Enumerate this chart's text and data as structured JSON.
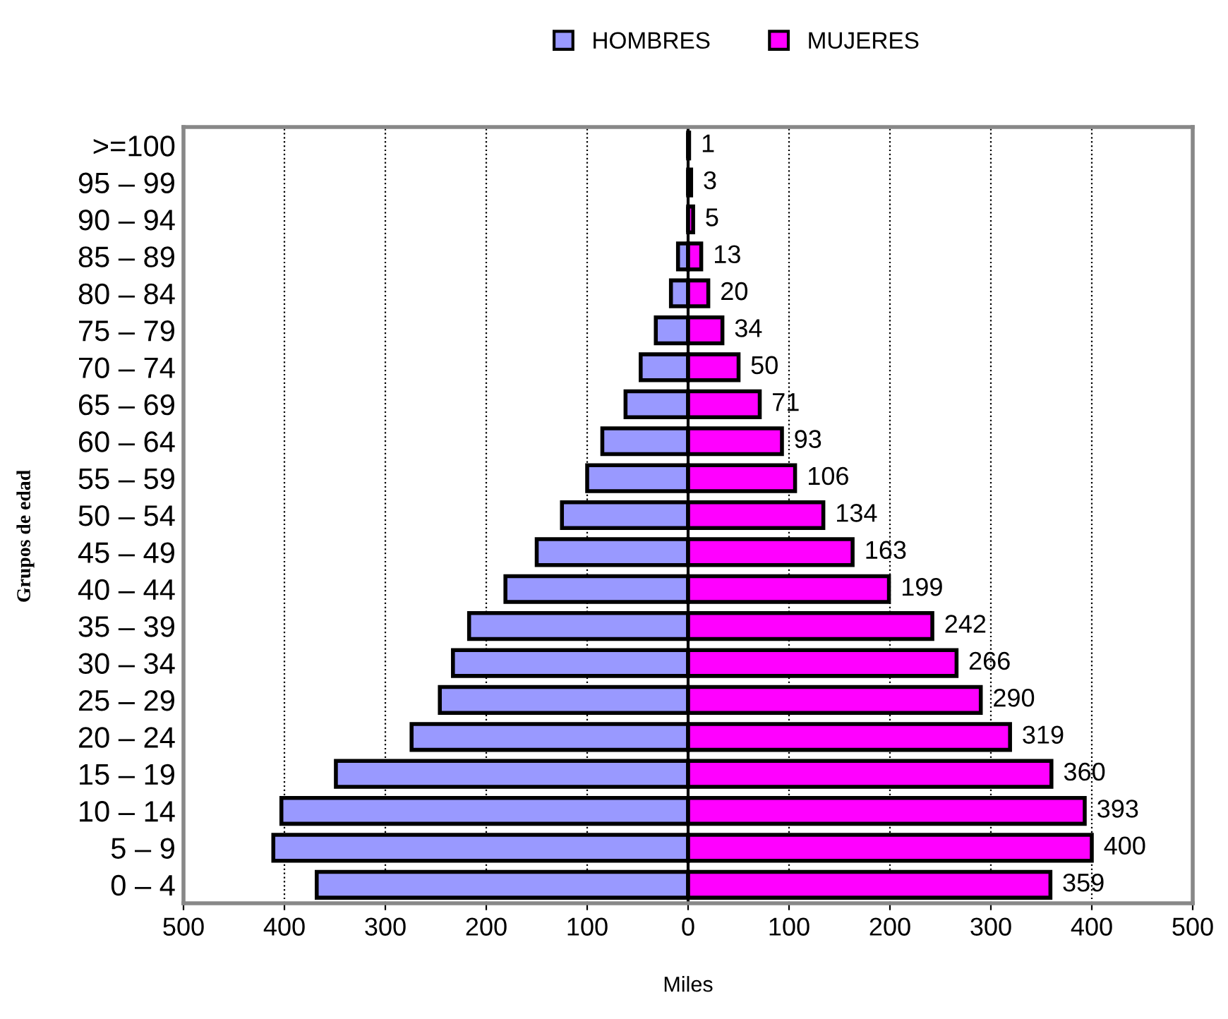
{
  "chart_data": {
    "type": "bar",
    "orientation": "horizontal",
    "stacked": true,
    "categories": [
      ">=100",
      "95 – 99",
      "90 – 94",
      "85 – 89",
      "80 – 84",
      "75 – 79",
      "70 – 74",
      "65 – 69",
      "60 – 64",
      "55 – 59",
      "50 – 54",
      "45 – 49",
      "40 – 44",
      "35 – 39",
      "30 – 34",
      "25 – 29",
      "20 – 24",
      "15 – 19",
      "10 – 14",
      "5 – 9",
      "0 – 4"
    ],
    "series": [
      {
        "name": "HOMBRES",
        "color": "#9999ff",
        "values": [
          null,
          null,
          null,
          -10,
          -17,
          -32,
          -47,
          -62,
          -85,
          -100,
          -125,
          -150,
          -181,
          -217,
          -233,
          -246,
          -274,
          -349,
          -403,
          -411,
          -368
        ]
      },
      {
        "name": "MUJERES",
        "color": "#ff00ff",
        "values": [
          1,
          3,
          5,
          13,
          20,
          34,
          50,
          71,
          93,
          106,
          134,
          163,
          199,
          242,
          266,
          290,
          319,
          360,
          393,
          400,
          359
        ],
        "value_labels": [
          "1",
          "3",
          "5",
          "13",
          "20",
          "34",
          "50",
          "71",
          "93",
          "106",
          "134",
          "163",
          "199",
          "242",
          "266",
          "290",
          "319",
          "360",
          "393",
          "400",
          "359"
        ]
      }
    ],
    "xlabel": "Miles",
    "ylabel": "Grupos de edad",
    "xlim": [
      -500,
      500
    ],
    "xticks": [
      {
        "value": -500,
        "label": "500"
      },
      {
        "value": -400,
        "label": "400"
      },
      {
        "value": -300,
        "label": "300"
      },
      {
        "value": -200,
        "label": "200"
      },
      {
        "value": -100,
        "label": "100"
      },
      0,
      100,
      200,
      300,
      400,
      500
    ],
    "grid": "x",
    "legend": "top"
  }
}
